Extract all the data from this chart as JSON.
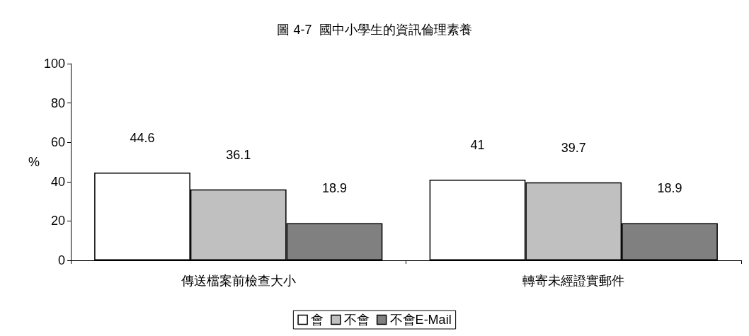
{
  "chart_data": {
    "type": "bar",
    "title": "圖 4-7  國中小學生的資訊倫理素養",
    "ylabel": "%",
    "categories": [
      "傳送檔案前檢查大小",
      "轉寄未經證實郵件"
    ],
    "series": [
      {
        "name": "會",
        "color": "#ffffff",
        "values": [
          44.6,
          41
        ]
      },
      {
        "name": "不會",
        "color": "#c0c0c0",
        "values": [
          36.1,
          39.7
        ]
      },
      {
        "name": "不會E-Mail",
        "color": "#808080",
        "values": [
          18.9,
          18.9
        ]
      }
    ],
    "ylim": [
      0,
      100
    ],
    "yticks": [
      0,
      20,
      40,
      60,
      80,
      100
    ],
    "grid": false,
    "legend": "bottom",
    "data_labels": true
  }
}
